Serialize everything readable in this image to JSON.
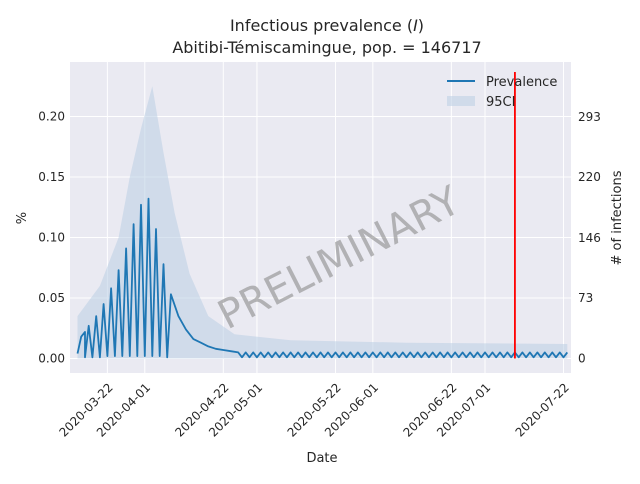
{
  "chart_data": {
    "type": "line",
    "title_prefix": "Infectious prevalence (",
    "title_symbol": "I",
    "title_suffix": ")",
    "subtitle": "Abitibi-Témiscamingue, pop. = 146717",
    "xlabel": "Date",
    "ylabel": "%",
    "y2label": "# of infections",
    "watermark": "PRELIMINARY",
    "grid": true,
    "legend_position": "top-right",
    "xlim": [
      "2020-03-12",
      "2020-07-24"
    ],
    "ylim": [
      -0.012,
      0.245
    ],
    "xticks": [
      "2020-03-22",
      "2020-04-01",
      "2020-04-22",
      "2020-05-01",
      "2020-05-22",
      "2020-06-01",
      "2020-06-22",
      "2020-07-01",
      "2020-07-22"
    ],
    "yticks": [
      0.0,
      0.05,
      0.1,
      0.15,
      0.2
    ],
    "ytick_labels": [
      "0.00",
      "0.05",
      "0.10",
      "0.15",
      "0.20"
    ],
    "y2ticks": [
      {
        "pct": 0.0,
        "label": "0"
      },
      {
        "pct": 0.0498,
        "label": "73"
      },
      {
        "pct": 0.0995,
        "label": "146"
      },
      {
        "pct": 0.1499,
        "label": "220"
      },
      {
        "pct": 0.1997,
        "label": "293"
      }
    ],
    "vline_date": "2020-07-09",
    "series": [
      {
        "name": "Prevalence",
        "color": "#1f77b4",
        "peaks": [
          [
            "2020-03-14",
            0.004
          ],
          [
            "2020-03-15",
            0.018
          ],
          [
            "2020-03-16",
            0.022
          ],
          [
            "2020-03-17",
            0.027
          ],
          [
            "2020-03-19",
            0.035
          ],
          [
            "2020-03-21",
            0.045
          ],
          [
            "2020-03-23",
            0.058
          ],
          [
            "2020-03-25",
            0.073
          ],
          [
            "2020-03-27",
            0.091
          ],
          [
            "2020-03-29",
            0.111
          ],
          [
            "2020-03-31",
            0.127
          ],
          [
            "2020-04-02",
            0.132
          ],
          [
            "2020-04-04",
            0.107
          ],
          [
            "2020-04-06",
            0.078
          ],
          [
            "2020-04-08",
            0.053
          ],
          [
            "2020-04-10",
            0.035
          ],
          [
            "2020-04-12",
            0.024
          ],
          [
            "2020-04-14",
            0.016
          ],
          [
            "2020-04-16",
            0.013
          ],
          [
            "2020-04-18",
            0.01
          ],
          [
            "2020-04-20",
            0.008
          ],
          [
            "2020-04-22",
            0.007
          ],
          [
            "2020-04-24",
            0.006
          ]
        ],
        "troughs": [
          [
            "2020-03-16",
            0.001
          ],
          [
            "2020-03-18",
            0.001
          ],
          [
            "2020-03-20",
            0.001
          ],
          [
            "2020-03-22",
            0.002
          ],
          [
            "2020-03-24",
            0.002
          ],
          [
            "2020-03-26",
            0.002
          ],
          [
            "2020-03-28",
            0.002
          ],
          [
            "2020-03-30",
            0.002
          ],
          [
            "2020-04-01",
            0.002
          ],
          [
            "2020-04-03",
            0.002
          ],
          [
            "2020-04-05",
            0.002
          ],
          [
            "2020-04-07",
            0.001
          ]
        ],
        "tail_start": "2020-04-26",
        "tail_end": "2020-07-23",
        "tail_high": 0.005,
        "tail_low": 0.001
      },
      {
        "name": "95CI",
        "color": "#b9cde3",
        "upper": [
          [
            "2020-03-14",
            0.035
          ],
          [
            "2020-03-20",
            0.06
          ],
          [
            "2020-03-25",
            0.1
          ],
          [
            "2020-03-28",
            0.15
          ],
          [
            "2020-03-31",
            0.19
          ],
          [
            "2020-04-03",
            0.225
          ],
          [
            "2020-04-06",
            0.17
          ],
          [
            "2020-04-09",
            0.12
          ],
          [
            "2020-04-13",
            0.07
          ],
          [
            "2020-04-18",
            0.035
          ],
          [
            "2020-04-25",
            0.02
          ],
          [
            "2020-05-10",
            0.015
          ],
          [
            "2020-06-10",
            0.013
          ],
          [
            "2020-07-23",
            0.012
          ]
        ]
      }
    ]
  }
}
